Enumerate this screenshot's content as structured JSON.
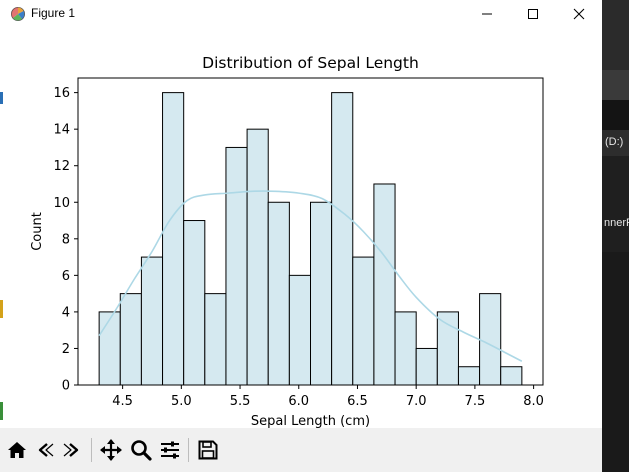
{
  "window": {
    "title": "Figure 1",
    "icon": "matplotlib-figure-icon"
  },
  "controls": {
    "minimize_icon": "minimize-icon",
    "maximize_icon": "maximize-icon",
    "close_icon": "close-icon"
  },
  "toolbar": {
    "items": [
      "home-icon",
      "back-arrow-icon",
      "forward-arrow-icon",
      "pan-move-icon",
      "zoom-magnifier-icon",
      "configure-subplots-icon",
      "save-floppy-icon"
    ]
  },
  "background": {
    "drive_label": "(D:)",
    "partial_label": "nnerF"
  },
  "chart_data": {
    "type": "bar",
    "title": "Distribution of Sepal Length",
    "xlabel": "Sepal Length (cm)",
    "ylabel": "Count",
    "bin_edges": [
      4.3,
      4.48,
      4.66,
      4.84,
      5.02,
      5.2,
      5.38,
      5.56,
      5.74,
      5.92,
      6.1,
      6.28,
      6.46,
      6.64,
      6.82,
      7.0,
      7.18,
      7.36,
      7.54,
      7.72,
      7.9
    ],
    "values": [
      4,
      5,
      7,
      16,
      9,
      5,
      13,
      14,
      10,
      6,
      10,
      16,
      7,
      11,
      4,
      2,
      4,
      1,
      5,
      1
    ],
    "xlim": [
      4.12,
      8.08
    ],
    "ylim": [
      0,
      16.8
    ],
    "xticks": [
      4.5,
      5.0,
      5.5,
      6.0,
      6.5,
      7.0,
      7.5,
      8.0
    ],
    "xtick_labels": [
      "4.5",
      "5.0",
      "5.5",
      "6.0",
      "6.5",
      "7.0",
      "7.5",
      "8.0"
    ],
    "yticks": [
      0,
      2,
      4,
      6,
      8,
      10,
      12,
      14,
      16
    ],
    "ytick_labels": [
      "0",
      "2",
      "4",
      "6",
      "8",
      "10",
      "12",
      "14",
      "16"
    ],
    "bar_color": "#d5e9f0",
    "edge_color": "#000000",
    "kde": {
      "x": [
        4.3,
        4.45,
        4.6,
        4.75,
        4.9,
        5.05,
        5.2,
        5.4,
        5.6,
        5.8,
        6.0,
        6.2,
        6.4,
        6.55,
        6.7,
        6.85,
        7.0,
        7.2,
        7.4,
        7.6,
        7.75,
        7.9
      ],
      "y": [
        2.7,
        4.2,
        5.8,
        7.3,
        9.0,
        10.1,
        10.4,
        10.5,
        10.6,
        10.6,
        10.5,
        10.2,
        9.3,
        8.4,
        7.3,
        6.0,
        4.8,
        3.6,
        2.9,
        2.3,
        1.8,
        1.3
      ],
      "color": "#add8e6"
    },
    "grid": false
  }
}
